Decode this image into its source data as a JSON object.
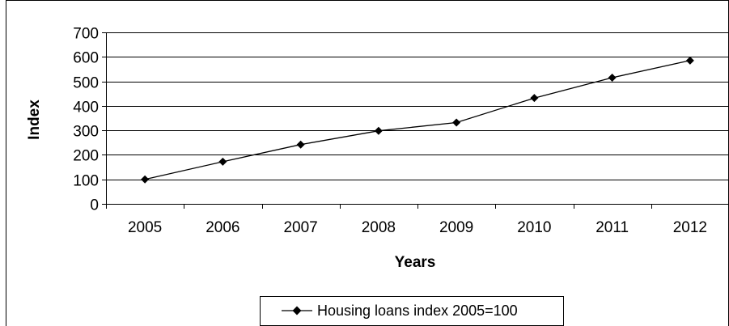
{
  "chart_data": {
    "type": "line",
    "title": "",
    "xlabel": "Years",
    "ylabel": "Index",
    "categories": [
      "2005",
      "2006",
      "2007",
      "2008",
      "2009",
      "2010",
      "2011",
      "2012"
    ],
    "series": [
      {
        "name": "Housing loans index 2005=100",
        "values": [
          100,
          172,
          242,
          298,
          332,
          432,
          515,
          585
        ],
        "color": "#000000",
        "marker": "diamond"
      }
    ],
    "ylim": [
      0,
      700
    ],
    "yticks": [
      0,
      100,
      200,
      300,
      400,
      500,
      600,
      700
    ],
    "grid": true,
    "legend_position": "bottom"
  }
}
